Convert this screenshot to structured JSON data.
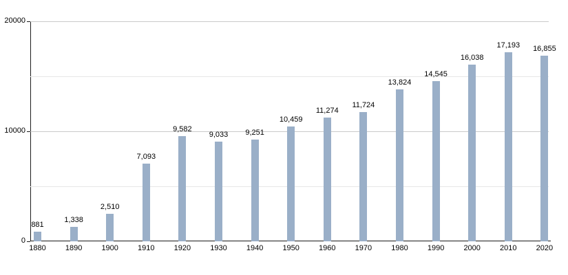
{
  "chart_data": {
    "type": "bar",
    "title": "",
    "xlabel": "",
    "ylabel": "",
    "categories": [
      "1880",
      "1890",
      "1900",
      "1910",
      "1920",
      "1930",
      "1940",
      "1950",
      "1960",
      "1970",
      "1980",
      "1990",
      "2000",
      "2010",
      "2020"
    ],
    "values": [
      881,
      1338,
      2510,
      7093,
      9582,
      9033,
      9251,
      10459,
      11274,
      11724,
      13824,
      14545,
      16038,
      17193,
      16855
    ],
    "value_labels": [
      "881",
      "1,338",
      "2,510",
      "7,093",
      "9,582",
      "9,033",
      "9,251",
      "10,459",
      "11,274",
      "11,724",
      "13,824",
      "14,545",
      "16,038",
      "17,193",
      "16,855"
    ],
    "ylim": [
      0,
      20000
    ],
    "yticks": [
      {
        "value": 0,
        "label": "0"
      },
      {
        "value": 10000,
        "label": "10000"
      },
      {
        "value": 20000,
        "label": "20000"
      }
    ],
    "major_gridlines": [
      10000,
      20000
    ],
    "minor_gridlines": [
      5000,
      15000
    ],
    "grid": "on",
    "legend": "none",
    "bar_color": "#9aafc8",
    "major_grid_color": "#c9c9c9",
    "minor_grid_color": "#e7e7e7",
    "axis_color": "#1a1a1a",
    "text_color": "#000000"
  }
}
